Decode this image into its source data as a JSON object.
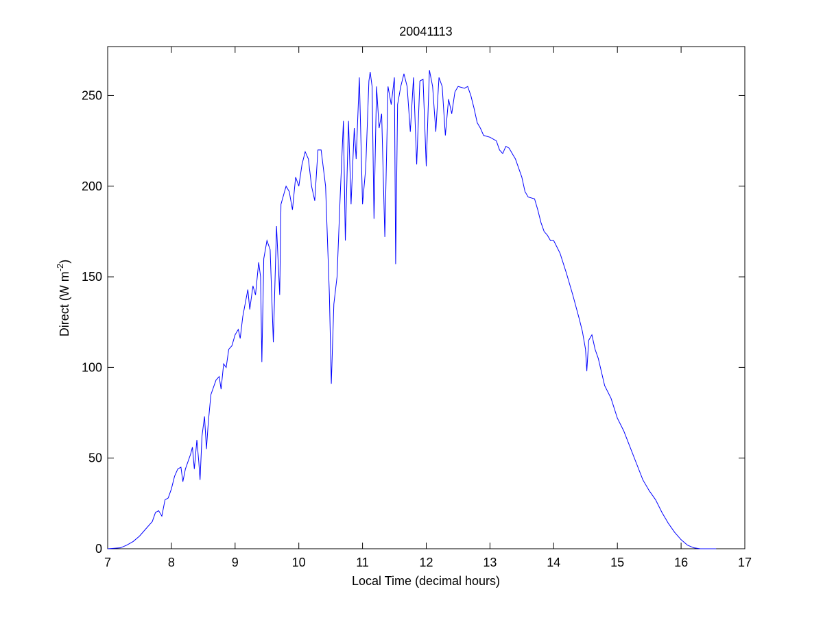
{
  "chart_data": {
    "type": "line",
    "title": "20041113",
    "x_label": "Local Time (decimal hours)",
    "y_label": [
      "Direct (W m",
      "-2",
      ")"
    ],
    "xlim": [
      7,
      17
    ],
    "xticks": [
      7,
      8,
      9,
      10,
      11,
      12,
      13,
      14,
      15,
      16,
      17
    ],
    "ylim": [
      0,
      277
    ],
    "yticks": [
      0,
      50,
      100,
      150,
      200,
      250
    ],
    "series": [
      {
        "color": "#0000ff",
        "x": [
          7.0,
          7.2,
          7.3,
          7.4,
          7.5,
          7.6,
          7.7,
          7.75,
          7.8,
          7.85,
          7.9,
          7.95,
          8.0,
          8.05,
          8.1,
          8.15,
          8.18,
          8.22,
          8.3,
          8.33,
          8.36,
          8.4,
          8.43,
          8.45,
          8.48,
          8.52,
          8.55,
          8.58,
          8.62,
          8.7,
          8.75,
          8.78,
          8.82,
          8.86,
          8.9,
          8.95,
          9.0,
          9.05,
          9.08,
          9.12,
          9.2,
          9.23,
          9.28,
          9.32,
          9.37,
          9.4,
          9.42,
          9.45,
          9.5,
          9.55,
          9.6,
          9.65,
          9.7,
          9.72,
          9.8,
          9.85,
          9.9,
          9.95,
          10.0,
          10.05,
          10.1,
          10.15,
          10.2,
          10.25,
          10.3,
          10.35,
          10.42,
          10.48,
          10.51,
          10.55,
          10.6,
          10.65,
          10.7,
          10.73,
          10.78,
          10.82,
          10.87,
          10.9,
          10.95,
          11.0,
          11.05,
          11.1,
          11.12,
          11.15,
          11.18,
          11.22,
          11.26,
          11.3,
          11.35,
          11.4,
          11.45,
          11.5,
          11.52,
          11.55,
          11.6,
          11.65,
          11.7,
          11.75,
          11.8,
          11.85,
          11.9,
          11.95,
          12.0,
          12.05,
          12.1,
          12.15,
          12.2,
          12.25,
          12.3,
          12.35,
          12.4,
          12.45,
          12.5,
          12.6,
          12.65,
          12.7,
          12.75,
          12.8,
          12.85,
          12.9,
          13.0,
          13.1,
          13.15,
          13.2,
          13.25,
          13.3,
          13.4,
          13.5,
          13.55,
          13.6,
          13.7,
          13.75,
          13.8,
          13.85,
          13.9,
          13.95,
          14.0,
          14.1,
          14.2,
          14.3,
          14.4,
          14.45,
          14.5,
          14.52,
          14.55,
          14.6,
          14.65,
          14.7,
          14.8,
          14.9,
          15.0,
          15.1,
          15.2,
          15.3,
          15.4,
          15.5,
          15.6,
          15.7,
          15.8,
          15.9,
          16.0,
          16.1,
          16.2,
          16.3,
          16.55
        ],
        "values": [
          0,
          0.5,
          2,
          4,
          7,
          11,
          15,
          20,
          21,
          18,
          27,
          28,
          33,
          40,
          44,
          45,
          37,
          44,
          52,
          56,
          44,
          60,
          48,
          38,
          62,
          73,
          55,
          70,
          85,
          93,
          95,
          88,
          102,
          100,
          110,
          112,
          118,
          121,
          116,
          128,
          143,
          132,
          145,
          140,
          158,
          150,
          103,
          160,
          170,
          165,
          114,
          178,
          140,
          190,
          200,
          197,
          187,
          205,
          200,
          212,
          219,
          215,
          200,
          192,
          220,
          220,
          200,
          140,
          91,
          135,
          150,
          195,
          236,
          170,
          236,
          190,
          232,
          215,
          260,
          190,
          210,
          258,
          263,
          255,
          182,
          255,
          232,
          240,
          172,
          255,
          245,
          260,
          157,
          245,
          255,
          262,
          255,
          230,
          260,
          212,
          258,
          259,
          211,
          264,
          255,
          230,
          260,
          255,
          228,
          248,
          240,
          252,
          255,
          254,
          255,
          250,
          243,
          235,
          232,
          228,
          227,
          225,
          220,
          218,
          222,
          221,
          215,
          205,
          197,
          194,
          193,
          187,
          180,
          175,
          173,
          170,
          170,
          163,
          152,
          140,
          127,
          120,
          110,
          98,
          115,
          118,
          110,
          105,
          90,
          83,
          72,
          65,
          56,
          47,
          38,
          32,
          27,
          20,
          14,
          9,
          5,
          2,
          0.5,
          0,
          0
        ]
      }
    ]
  }
}
